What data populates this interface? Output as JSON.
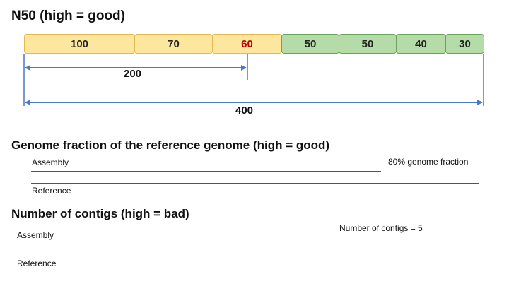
{
  "n50": {
    "title": "N50 (high = good)",
    "contigs": [
      {
        "value": "100",
        "color": "yellow"
      },
      {
        "value": "70",
        "color": "yellow"
      },
      {
        "value": "60",
        "color": "yellow",
        "highlight": "#c00000"
      },
      {
        "value": "50",
        "color": "green"
      },
      {
        "value": "50",
        "color": "green"
      },
      {
        "value": "40",
        "color": "green"
      },
      {
        "value": "30",
        "color": "green"
      }
    ],
    "half_span_label": "200",
    "total_span_label": "400"
  },
  "genome_fraction": {
    "title": "Genome fraction of the reference genome (high = good)",
    "assembly_label": "Assembly",
    "reference_label": "Reference",
    "annotation": "80% genome fraction"
  },
  "contig_count": {
    "title": "Number of contigs (high = bad)",
    "assembly_label": "Assembly",
    "reference_label": "Reference",
    "annotation": "Number of contigs = 5"
  },
  "colors": {
    "yellow_fill": "#fde79e",
    "green_fill": "#b5dca8",
    "arrow": "#4a78c2",
    "line": "#2b5d8f",
    "highlight": "#c00000"
  }
}
